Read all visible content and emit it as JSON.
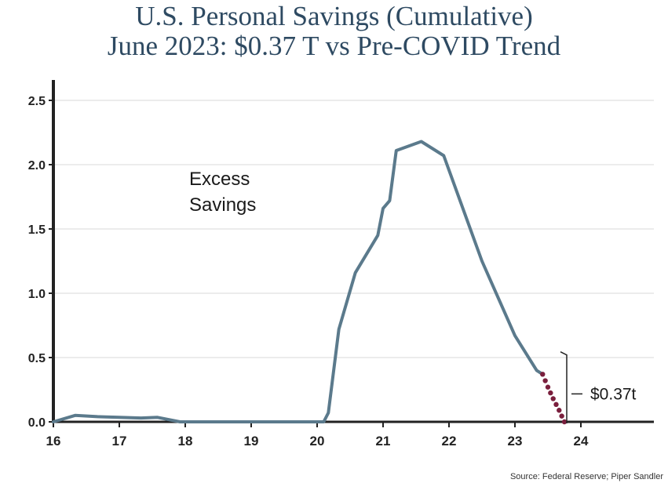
{
  "title_line1": "U.S. Personal Savings (Cumulative)",
  "title_line2": "June 2023: $0.37 T vs Pre-COVID Trend",
  "source": "Source: Federal Reserve; Piper Sandler",
  "colors": {
    "line": "#5b7a8c",
    "dots": "#7a1f3d",
    "title": "#2e4a62",
    "grid": "#d9d9d9"
  },
  "chart_data": {
    "type": "line",
    "title": "U.S. Personal Savings (Cumulative)",
    "subtitle": "June 2023: $0.37 T vs Pre-COVID Trend",
    "xlabel": "",
    "ylabel": "",
    "xlim": [
      16,
      25.1
    ],
    "ylim": [
      0,
      2.6
    ],
    "grid": true,
    "x_ticks": [
      16,
      17,
      18,
      19,
      20,
      21,
      22,
      23,
      24
    ],
    "x_tick_labels": [
      "16",
      "17",
      "18",
      "19",
      "20",
      "21",
      "22",
      "23",
      "24"
    ],
    "y_ticks": [
      0,
      0.5,
      1.0,
      1.5,
      2.0,
      2.5
    ],
    "y_tick_labels": [
      "0.0",
      "0.5",
      "1.0",
      "1.5",
      "2.0",
      "2.5"
    ],
    "series": [
      {
        "style": "solid",
        "x": [
          16.0,
          16.33,
          16.67,
          17.0,
          17.33,
          17.58,
          17.92,
          18.5,
          19.0,
          19.5,
          20.1,
          20.17,
          20.33,
          20.58,
          20.92,
          21.0,
          21.1,
          21.2,
          21.58,
          21.92,
          22.5,
          23.0,
          23.33,
          23.42
        ],
        "y": [
          0.0,
          0.05,
          0.04,
          0.035,
          0.03,
          0.035,
          0.0,
          0.0,
          0.0,
          0.0,
          0.0,
          0.07,
          0.72,
          1.16,
          1.45,
          1.66,
          1.72,
          2.11,
          2.18,
          2.07,
          1.25,
          0.67,
          0.4,
          0.37
        ]
      },
      {
        "style": "dotted",
        "x": [
          23.42,
          23.5,
          23.58,
          23.67,
          23.75
        ],
        "y": [
          0.37,
          0.27,
          0.18,
          0.09,
          0.0
        ]
      }
    ],
    "annotations": [
      {
        "text_lines": [
          "Excess",
          "Savings"
        ],
        "x": 19.0,
        "y": 1.84
      },
      {
        "text": "$0.37t",
        "x": 24.5,
        "y": 0.27
      }
    ]
  }
}
